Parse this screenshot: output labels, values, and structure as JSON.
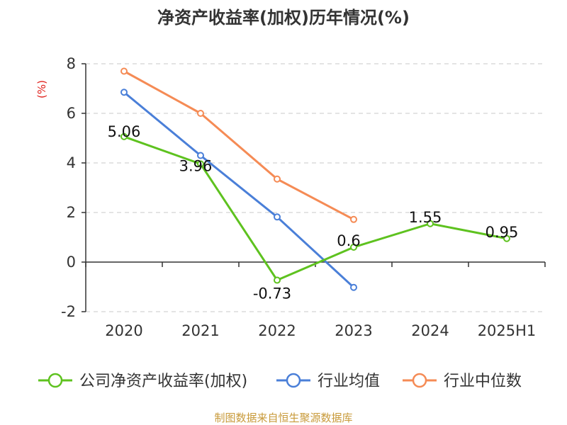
{
  "chart_data": {
    "type": "line",
    "title": "净资产收益率(加权)历年情况(%)",
    "ylabel": "(%)",
    "categories": [
      "2020",
      "2021",
      "2022",
      "2023",
      "2024",
      "2025H1"
    ],
    "ylim": [
      -2,
      8
    ],
    "yticks": [
      -2,
      0,
      2,
      4,
      6,
      8
    ],
    "grid": true,
    "legend_position": "bottom",
    "series": [
      {
        "name": "公司净资产收益率(加权)",
        "color": "#5ec21f",
        "values": [
          5.06,
          3.96,
          -0.73,
          0.6,
          1.55,
          0.95
        ],
        "labels": [
          "5.06",
          "3.96",
          "-0.73",
          "0.6",
          "1.55",
          "0.95"
        ]
      },
      {
        "name": "行业均值",
        "color": "#4a7fd8",
        "values": [
          6.85,
          4.3,
          1.82,
          -1.02,
          null,
          null
        ]
      },
      {
        "name": "行业中位数",
        "color": "#f58b55",
        "values": [
          7.7,
          6.0,
          3.35,
          1.72,
          null,
          null
        ]
      }
    ]
  },
  "source": "制图数据来自恒生聚源数据库"
}
